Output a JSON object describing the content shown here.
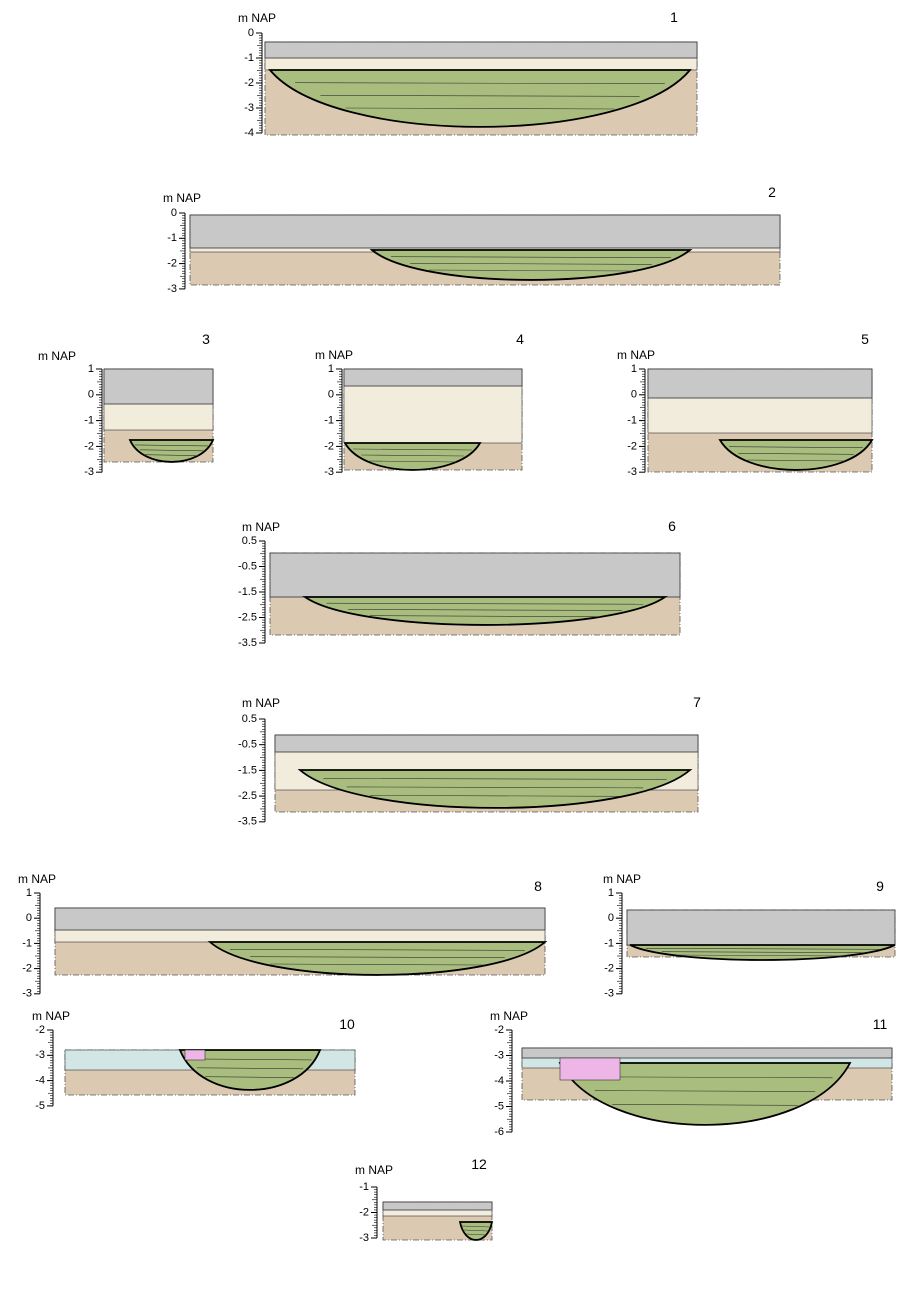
{
  "panels": [
    {
      "number": "1",
      "axis_label": "m NAP",
      "ticks": [
        0,
        -1,
        -2,
        -3,
        -4
      ]
    },
    {
      "number": "2",
      "axis_label": "m NAP",
      "ticks": [
        0,
        -1,
        -2,
        -3
      ]
    },
    {
      "number": "3",
      "axis_label": "m NAP",
      "ticks": [
        1,
        0,
        -1,
        -2,
        -3
      ]
    },
    {
      "number": "4",
      "axis_label": "m NAP",
      "ticks": [
        1,
        0,
        -1,
        -2,
        -3
      ]
    },
    {
      "number": "5",
      "axis_label": "m NAP",
      "ticks": [
        1,
        0,
        -1,
        -2,
        -3
      ]
    },
    {
      "number": "6",
      "axis_label": "m NAP",
      "ticks": [
        0.5,
        -0.5,
        -1.5,
        -2.5,
        -3.5
      ]
    },
    {
      "number": "7",
      "axis_label": "m NAP",
      "ticks": [
        0.5,
        -0.5,
        -1.5,
        -2.5,
        -3.5
      ]
    },
    {
      "number": "8",
      "axis_label": "m NAP",
      "ticks": [
        1,
        0,
        -1,
        -2,
        -3
      ]
    },
    {
      "number": "9",
      "axis_label": "m NAP",
      "ticks": [
        1,
        0,
        -1,
        -2,
        -3
      ]
    },
    {
      "number": "10",
      "axis_label": "m NAP",
      "ticks": [
        -2,
        -3,
        -4,
        -5
      ]
    },
    {
      "number": "11",
      "axis_label": "m NAP",
      "ticks": [
        -2,
        -3,
        -4,
        -5,
        -6
      ]
    },
    {
      "number": "12",
      "axis_label": "m NAP",
      "ticks": [
        -1,
        -2,
        -3
      ]
    }
  ]
}
